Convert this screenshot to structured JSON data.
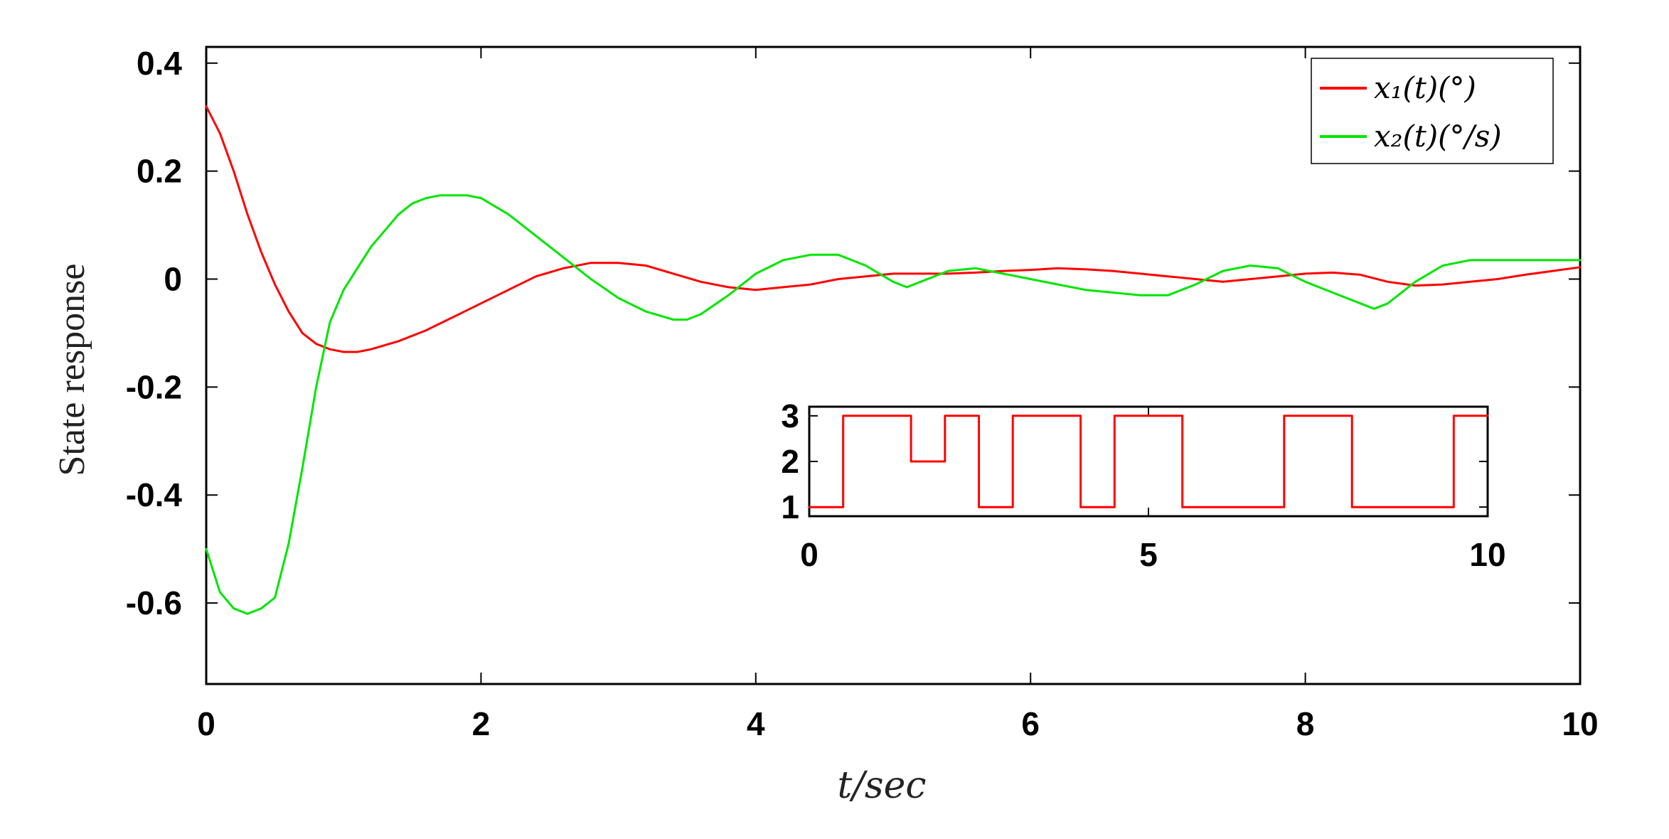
{
  "chart_data": [
    {
      "type": "line",
      "xlabel": "t/sec",
      "ylabel": "State response",
      "xlim": [
        0,
        10
      ],
      "ylim": [
        -0.75,
        0.43
      ],
      "xticks": [
        0,
        2,
        4,
        6,
        8,
        10
      ],
      "xtick_labels": [
        "0",
        "2",
        "4",
        "6",
        "8",
        "10"
      ],
      "yticks": [
        0.4,
        0.2,
        0,
        -0.2,
        -0.4,
        -0.6
      ],
      "ytick_labels": [
        "0.4",
        "0.2",
        "0",
        "-0.2",
        "-0.4",
        "-0.6"
      ],
      "grid": false,
      "legend_position": "top-right",
      "series": [
        {
          "name": "x₁(t)(°)",
          "color": "#ff0000",
          "x": [
            0,
            0.1,
            0.2,
            0.3,
            0.4,
            0.5,
            0.6,
            0.7,
            0.8,
            0.9,
            1.0,
            1.1,
            1.2,
            1.4,
            1.6,
            1.8,
            2.0,
            2.2,
            2.4,
            2.6,
            2.8,
            3.0,
            3.2,
            3.4,
            3.6,
            3.8,
            4.0,
            4.2,
            4.4,
            4.6,
            4.8,
            5.0,
            5.2,
            5.4,
            5.6,
            5.8,
            6.0,
            6.2,
            6.4,
            6.6,
            6.8,
            7.0,
            7.2,
            7.4,
            7.6,
            7.8,
            8.0,
            8.2,
            8.4,
            8.6,
            8.8,
            9.0,
            9.2,
            9.4,
            9.6,
            9.8,
            10.0
          ],
          "y": [
            0.32,
            0.27,
            0.2,
            0.12,
            0.05,
            -0.01,
            -0.06,
            -0.1,
            -0.12,
            -0.13,
            -0.135,
            -0.135,
            -0.13,
            -0.115,
            -0.095,
            -0.07,
            -0.045,
            -0.02,
            0.005,
            0.02,
            0.03,
            0.03,
            0.025,
            0.01,
            -0.005,
            -0.015,
            -0.02,
            -0.015,
            -0.01,
            0.0,
            0.005,
            0.01,
            0.01,
            0.01,
            0.012,
            0.015,
            0.017,
            0.02,
            0.018,
            0.015,
            0.01,
            0.005,
            0.0,
            -0.005,
            0.0,
            0.005,
            0.01,
            0.012,
            0.008,
            -0.005,
            -0.012,
            -0.01,
            -0.005,
            0.0,
            0.008,
            0.015,
            0.022
          ]
        },
        {
          "name": "x₂(t)(°/s)",
          "color": "#00e600",
          "x": [
            0,
            0.1,
            0.2,
            0.3,
            0.4,
            0.5,
            0.6,
            0.7,
            0.8,
            0.9,
            1.0,
            1.1,
            1.2,
            1.3,
            1.4,
            1.5,
            1.6,
            1.7,
            1.8,
            1.9,
            2.0,
            2.2,
            2.4,
            2.6,
            2.8,
            3.0,
            3.2,
            3.4,
            3.5,
            3.6,
            3.8,
            4.0,
            4.2,
            4.4,
            4.6,
            4.8,
            5.0,
            5.1,
            5.2,
            5.4,
            5.6,
            5.8,
            6.0,
            6.2,
            6.4,
            6.6,
            6.8,
            7.0,
            7.2,
            7.4,
            7.6,
            7.8,
            8.0,
            8.2,
            8.4,
            8.5,
            8.6,
            8.8,
            9.0,
            9.2,
            9.4,
            9.6,
            9.8,
            10.0
          ],
          "y": [
            -0.5,
            -0.58,
            -0.61,
            -0.62,
            -0.61,
            -0.59,
            -0.49,
            -0.35,
            -0.2,
            -0.08,
            -0.02,
            0.02,
            0.06,
            0.09,
            0.12,
            0.14,
            0.15,
            0.155,
            0.155,
            0.155,
            0.15,
            0.12,
            0.08,
            0.04,
            0.0,
            -0.035,
            -0.06,
            -0.075,
            -0.075,
            -0.065,
            -0.03,
            0.01,
            0.035,
            0.045,
            0.045,
            0.025,
            -0.005,
            -0.015,
            -0.005,
            0.015,
            0.02,
            0.01,
            0.0,
            -0.01,
            -0.02,
            -0.025,
            -0.03,
            -0.03,
            -0.01,
            0.015,
            0.025,
            0.02,
            -0.005,
            -0.025,
            -0.045,
            -0.055,
            -0.045,
            -0.005,
            0.025,
            0.035,
            0.035,
            0.035,
            0.035,
            0.035
          ]
        }
      ]
    },
    {
      "type": "line",
      "title": "",
      "xlim": [
        0,
        10
      ],
      "ylim": [
        0.8,
        3.2
      ],
      "xticks": [
        0,
        5,
        10
      ],
      "xtick_labels": [
        "0",
        "5",
        "10"
      ],
      "yticks": [
        3,
        2,
        1
      ],
      "ytick_labels": [
        "3",
        "2",
        "1"
      ],
      "grid": false,
      "series": [
        {
          "color": "#ff0000",
          "step": true,
          "x": [
            0,
            0.5,
            0.5,
            1.5,
            1.5,
            2.0,
            2.0,
            2.5,
            2.5,
            3.0,
            3.0,
            4.0,
            4.0,
            4.5,
            4.5,
            5.5,
            5.5,
            7.0,
            7.0,
            8.0,
            8.0,
            9.5,
            9.5,
            10.0
          ],
          "y": [
            1,
            1,
            3,
            3,
            2,
            2,
            3,
            3,
            1,
            1,
            3,
            3,
            1,
            1,
            3,
            3,
            1,
            1,
            3,
            3,
            1,
            1,
            3,
            3
          ]
        }
      ]
    }
  ]
}
